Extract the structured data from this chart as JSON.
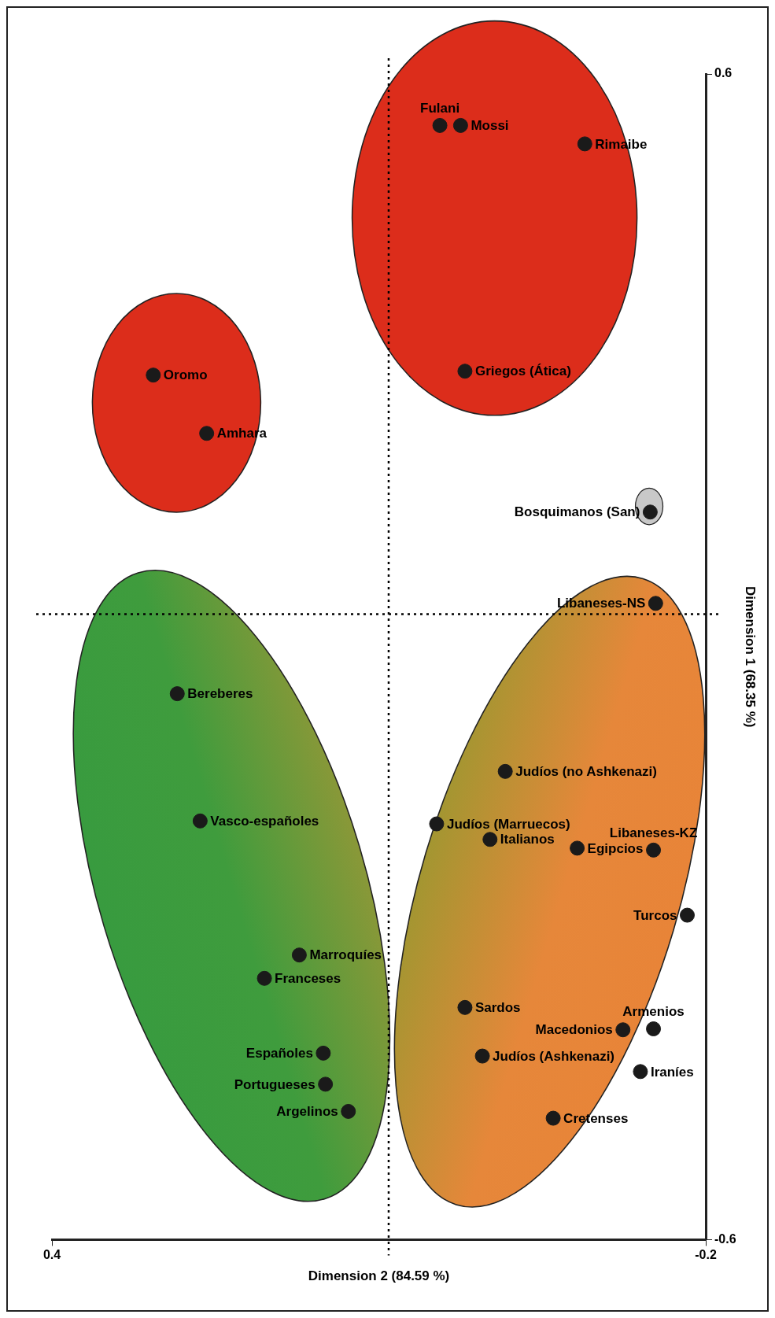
{
  "chart_data": {
    "type": "scatter",
    "xlabel": "Dimension 2 (84.59 %)",
    "ylabel": "Dimension 1 (68.35 %)",
    "xlim": [
      0.4,
      -0.2
    ],
    "xticks": [
      0.4,
      -0.2
    ],
    "ylim": [
      -0.6,
      0.6
    ],
    "yticks": [
      -0.6,
      0.6
    ],
    "grid": false,
    "legend": false,
    "marker": "circle",
    "series": [
      {
        "color": "#1a1a1a",
        "x": [
          0.025,
          0.044,
          -0.089,
          0.021,
          0.307,
          0.258,
          -0.149,
          -0.154,
          0.285,
          0.264,
          -0.016,
          -0.002,
          0.047,
          -0.082,
          -0.152,
          -0.183,
          0.173,
          0.205,
          0.021,
          -0.124,
          -0.152,
          0.151,
          0.005,
          0.149,
          -0.14,
          0.128,
          -0.06
        ],
        "values": [
          0.547,
          0.547,
          0.528,
          0.294,
          0.29,
          0.23,
          0.149,
          0.055,
          -0.038,
          -0.169,
          -0.118,
          -0.188,
          -0.172,
          -0.197,
          -0.199,
          -0.266,
          -0.307,
          -0.331,
          -0.361,
          -0.384,
          -0.383,
          -0.408,
          -0.411,
          -0.44,
          -0.427,
          -0.468,
          -0.475
        ]
      }
    ],
    "ref_lines": [
      {
        "axis": "x",
        "value": 0.091,
        "line_style": "dotted"
      },
      {
        "axis": "y",
        "value": 0.044,
        "line_style": "dotted"
      }
    ],
    "annotations": [
      {
        "text": "Mossi",
        "x": 0.025,
        "y": 0.547
      },
      {
        "text": "Fulani",
        "x": 0.044,
        "y": 0.547
      },
      {
        "text": "Rimaibe",
        "x": -0.089,
        "y": 0.528
      },
      {
        "text": "Griegos (Ática)",
        "x": 0.021,
        "y": 0.294
      },
      {
        "text": "Oromo",
        "x": 0.307,
        "y": 0.29
      },
      {
        "text": "Amhara",
        "x": 0.258,
        "y": 0.23
      },
      {
        "text": "Bosquimanos (San)",
        "x": -0.149,
        "y": 0.149
      },
      {
        "text": "Libaneses-NS",
        "x": -0.154,
        "y": 0.055
      },
      {
        "text": "Bereberes",
        "x": 0.285,
        "y": -0.038
      },
      {
        "text": "Vasco-españoles",
        "x": 0.264,
        "y": -0.169
      },
      {
        "text": "Judíos (no Ashkenazi)",
        "x": -0.016,
        "y": -0.118
      },
      {
        "text": "Italianos",
        "x": -0.002,
        "y": -0.188
      },
      {
        "text": "Judíos (Marruecos)",
        "x": 0.047,
        "y": -0.172
      },
      {
        "text": "Egipcios",
        "x": -0.082,
        "y": -0.197
      },
      {
        "text": "Libaneses-KZ",
        "x": -0.152,
        "y": -0.199
      },
      {
        "text": "Turcos",
        "x": -0.183,
        "y": -0.266
      },
      {
        "text": "Marroquíes",
        "x": 0.173,
        "y": -0.307
      },
      {
        "text": "Franceses",
        "x": 0.205,
        "y": -0.331
      },
      {
        "text": "Sardos",
        "x": 0.021,
        "y": -0.361
      },
      {
        "text": "Macedonios",
        "x": -0.124,
        "y": -0.384
      },
      {
        "text": "Armenios",
        "x": -0.152,
        "y": -0.383
      },
      {
        "text": "Españoles",
        "x": 0.151,
        "y": -0.408
      },
      {
        "text": "Judíos (Ashkenazi)",
        "x": 0.005,
        "y": -0.411
      },
      {
        "text": "Portugueses",
        "x": 0.149,
        "y": -0.44
      },
      {
        "text": "Iraníes",
        "x": -0.14,
        "y": -0.427
      },
      {
        "text": "Argelinos",
        "x": 0.128,
        "y": -0.468
      },
      {
        "text": "Cretenses",
        "x": -0.06,
        "y": -0.475
      }
    ]
  }
}
